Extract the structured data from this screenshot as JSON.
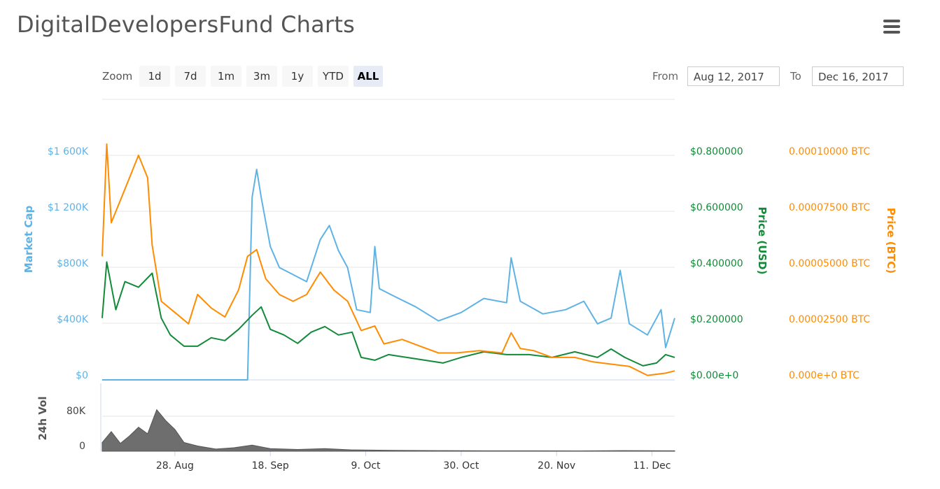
{
  "page": {
    "title": "DigitalDevelopersFund Charts",
    "menu_icon": "hamburger-menu-icon"
  },
  "toolbar": {
    "zoom_label": "Zoom",
    "zoom_buttons": [
      "1d",
      "7d",
      "1m",
      "3m",
      "1y",
      "YTD",
      "ALL"
    ],
    "active_zoom": "ALL",
    "from_label": "From",
    "from_value": "Aug 12, 2017",
    "to_label": "To",
    "to_value": "Dec 16, 2017"
  },
  "chart_data": {
    "type": "line",
    "colors": {
      "market_cap": "#5fb3e4",
      "price_usd": "#138a3a",
      "price_btc": "#ff8c00",
      "volume": "#555555"
    },
    "grid": true,
    "x_ticks": [
      "28. Aug",
      "18. Sep",
      "9. Oct",
      "30. Oct",
      "20. Nov",
      "11. Dec"
    ],
    "x_range": [
      "2017-08-12",
      "2017-12-16"
    ],
    "axes": {
      "market_cap": {
        "title": "Market Cap",
        "ticks": [
          "$0",
          "$400K",
          "$800K",
          "$1 200K",
          "$1 600K"
        ],
        "range": [
          0,
          1600000
        ]
      },
      "price_usd": {
        "title": "Price (USD)",
        "ticks": [
          "$0.00e+0",
          "$0.200000",
          "$0.400000",
          "$0.600000",
          "$0.800000"
        ],
        "range": [
          0,
          0.8
        ]
      },
      "price_btc": {
        "title": "Price (BTC)",
        "ticks": [
          "0.000e+0 BTC",
          "0.00002500 BTC",
          "0.00005000 BTC",
          "0.00007500 BTC",
          "0.00010000 BTC"
        ],
        "range": [
          0,
          0.0001
        ]
      },
      "volume": {
        "title": "24h Vol",
        "ticks": [
          "0",
          "80K"
        ],
        "range": [
          0,
          80000
        ]
      }
    },
    "series": [
      {
        "name": "Market Cap",
        "axis": "market_cap",
        "points": [
          [
            "2017-08-12",
            0
          ],
          [
            "2017-08-26",
            0
          ],
          [
            "2017-09-09",
            0
          ],
          [
            "2017-09-13",
            0
          ],
          [
            "2017-09-14",
            1300000
          ],
          [
            "2017-09-15",
            1500000
          ],
          [
            "2017-09-16",
            1300000
          ],
          [
            "2017-09-18",
            950000
          ],
          [
            "2017-09-20",
            800000
          ],
          [
            "2017-09-23",
            750000
          ],
          [
            "2017-09-26",
            700000
          ],
          [
            "2017-09-29",
            1000000
          ],
          [
            "2017-10-01",
            1100000
          ],
          [
            "2017-10-03",
            920000
          ],
          [
            "2017-10-05",
            800000
          ],
          [
            "2017-10-07",
            500000
          ],
          [
            "2017-10-10",
            480000
          ],
          [
            "2017-10-11",
            950000
          ],
          [
            "2017-10-12",
            650000
          ],
          [
            "2017-10-15",
            600000
          ],
          [
            "2017-10-20",
            520000
          ],
          [
            "2017-10-25",
            420000
          ],
          [
            "2017-10-30",
            480000
          ],
          [
            "2017-11-04",
            580000
          ],
          [
            "2017-11-09",
            550000
          ],
          [
            "2017-11-10",
            870000
          ],
          [
            "2017-11-12",
            560000
          ],
          [
            "2017-11-17",
            470000
          ],
          [
            "2017-11-22",
            500000
          ],
          [
            "2017-11-26",
            560000
          ],
          [
            "2017-11-29",
            400000
          ],
          [
            "2017-12-02",
            440000
          ],
          [
            "2017-12-04",
            780000
          ],
          [
            "2017-12-06",
            400000
          ],
          [
            "2017-12-10",
            320000
          ],
          [
            "2017-12-13",
            500000
          ],
          [
            "2017-12-14",
            230000
          ],
          [
            "2017-12-16",
            440000
          ]
        ]
      },
      {
        "name": "Price (USD)",
        "axis": "price_usd",
        "points": [
          [
            "2017-08-12",
            0.22
          ],
          [
            "2017-08-13",
            0.42
          ],
          [
            "2017-08-15",
            0.25
          ],
          [
            "2017-08-17",
            0.35
          ],
          [
            "2017-08-20",
            0.33
          ],
          [
            "2017-08-23",
            0.38
          ],
          [
            "2017-08-25",
            0.22
          ],
          [
            "2017-08-27",
            0.16
          ],
          [
            "2017-08-30",
            0.12
          ],
          [
            "2017-09-02",
            0.12
          ],
          [
            "2017-09-05",
            0.15
          ],
          [
            "2017-09-08",
            0.14
          ],
          [
            "2017-09-11",
            0.18
          ],
          [
            "2017-09-14",
            0.23
          ],
          [
            "2017-09-16",
            0.26
          ],
          [
            "2017-09-18",
            0.18
          ],
          [
            "2017-09-21",
            0.16
          ],
          [
            "2017-09-24",
            0.13
          ],
          [
            "2017-09-27",
            0.17
          ],
          [
            "2017-09-30",
            0.19
          ],
          [
            "2017-10-03",
            0.16
          ],
          [
            "2017-10-06",
            0.17
          ],
          [
            "2017-10-08",
            0.08
          ],
          [
            "2017-10-11",
            0.07
          ],
          [
            "2017-10-14",
            0.09
          ],
          [
            "2017-10-18",
            0.08
          ],
          [
            "2017-10-22",
            0.07
          ],
          [
            "2017-10-26",
            0.06
          ],
          [
            "2017-10-30",
            0.08
          ],
          [
            "2017-11-04",
            0.1
          ],
          [
            "2017-11-09",
            0.09
          ],
          [
            "2017-11-14",
            0.09
          ],
          [
            "2017-11-19",
            0.08
          ],
          [
            "2017-11-24",
            0.1
          ],
          [
            "2017-11-29",
            0.08
          ],
          [
            "2017-12-02",
            0.11
          ],
          [
            "2017-12-05",
            0.08
          ],
          [
            "2017-12-09",
            0.05
          ],
          [
            "2017-12-12",
            0.06
          ],
          [
            "2017-12-14",
            0.09
          ],
          [
            "2017-12-16",
            0.08
          ]
        ]
      },
      {
        "name": "Price (BTC)",
        "axis": "price_btc",
        "points": [
          [
            "2017-08-12",
            5.5e-05
          ],
          [
            "2017-08-13",
            0.000105
          ],
          [
            "2017-08-14",
            7e-05
          ],
          [
            "2017-08-16",
            8e-05
          ],
          [
            "2017-08-18",
            9e-05
          ],
          [
            "2017-08-20",
            0.0001
          ],
          [
            "2017-08-22",
            9e-05
          ],
          [
            "2017-08-23",
            6e-05
          ],
          [
            "2017-08-25",
            3.5e-05
          ],
          [
            "2017-08-28",
            3e-05
          ],
          [
            "2017-08-31",
            2.5e-05
          ],
          [
            "2017-09-02",
            3.8e-05
          ],
          [
            "2017-09-05",
            3.2e-05
          ],
          [
            "2017-09-08",
            2.8e-05
          ],
          [
            "2017-09-11",
            4e-05
          ],
          [
            "2017-09-13",
            5.5e-05
          ],
          [
            "2017-09-15",
            5.8e-05
          ],
          [
            "2017-09-17",
            4.5e-05
          ],
          [
            "2017-09-20",
            3.8e-05
          ],
          [
            "2017-09-23",
            3.5e-05
          ],
          [
            "2017-09-26",
            3.8e-05
          ],
          [
            "2017-09-29",
            4.8e-05
          ],
          [
            "2017-10-02",
            4e-05
          ],
          [
            "2017-10-05",
            3.5e-05
          ],
          [
            "2017-10-08",
            2.2e-05
          ],
          [
            "2017-10-11",
            2.4e-05
          ],
          [
            "2017-10-13",
            1.6e-05
          ],
          [
            "2017-10-17",
            1.8e-05
          ],
          [
            "2017-10-21",
            1.5e-05
          ],
          [
            "2017-10-25",
            1.2e-05
          ],
          [
            "2017-10-29",
            1.2e-05
          ],
          [
            "2017-11-03",
            1.3e-05
          ],
          [
            "2017-11-08",
            1.2e-05
          ],
          [
            "2017-11-10",
            2.1e-05
          ],
          [
            "2017-11-12",
            1.4e-05
          ],
          [
            "2017-11-15",
            1.3e-05
          ],
          [
            "2017-11-19",
            1e-05
          ],
          [
            "2017-11-24",
            1e-05
          ],
          [
            "2017-11-28",
            8e-06
          ],
          [
            "2017-12-02",
            7e-06
          ],
          [
            "2017-12-06",
            6e-06
          ],
          [
            "2017-12-10",
            2e-06
          ],
          [
            "2017-12-14",
            3e-06
          ],
          [
            "2017-12-16",
            4e-06
          ]
        ]
      },
      {
        "name": "24h Vol",
        "axis": "volume",
        "points": [
          [
            "2017-08-12",
            20000
          ],
          [
            "2017-08-14",
            45000
          ],
          [
            "2017-08-16",
            18000
          ],
          [
            "2017-08-18",
            35000
          ],
          [
            "2017-08-20",
            55000
          ],
          [
            "2017-08-22",
            40000
          ],
          [
            "2017-08-24",
            95000
          ],
          [
            "2017-08-26",
            70000
          ],
          [
            "2017-08-28",
            50000
          ],
          [
            "2017-08-30",
            20000
          ],
          [
            "2017-09-02",
            12000
          ],
          [
            "2017-09-06",
            5000
          ],
          [
            "2017-09-10",
            8000
          ],
          [
            "2017-09-14",
            14000
          ],
          [
            "2017-09-18",
            6000
          ],
          [
            "2017-09-24",
            4000
          ],
          [
            "2017-09-30",
            6000
          ],
          [
            "2017-10-06",
            3000
          ],
          [
            "2017-10-15",
            2000
          ],
          [
            "2017-10-25",
            1500
          ],
          [
            "2017-11-05",
            1000
          ],
          [
            "2017-11-15",
            1000
          ],
          [
            "2017-11-25",
            800
          ],
          [
            "2017-12-05",
            1500
          ],
          [
            "2017-12-16",
            1000
          ]
        ]
      }
    ]
  }
}
